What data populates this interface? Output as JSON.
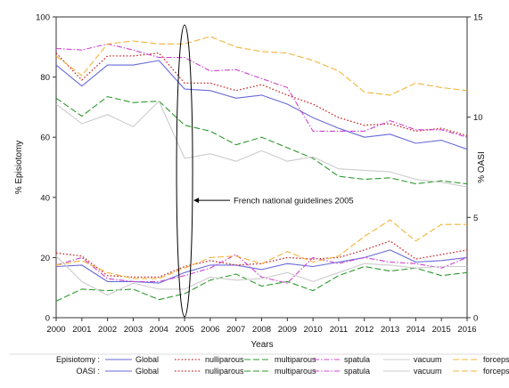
{
  "colors": {
    "global": "#6a6ad8",
    "nulliparous": "#cc2a2a",
    "multiparous": "#2e9a2e",
    "spatula": "#cc44cc",
    "vacuum": "#cccccc",
    "forceps": "#f0b43c",
    "axis": "#333333",
    "annotation": "#000000"
  },
  "chart_data": {
    "type": "line",
    "xlabel": "Years",
    "ylabel_left": "% Episiotomy",
    "ylabel_right": "% OASI",
    "x": [
      2000,
      2001,
      2002,
      2003,
      2004,
      2005,
      2006,
      2007,
      2008,
      2009,
      2010,
      2011,
      2012,
      2013,
      2014,
      2015,
      2016
    ],
    "x_ticks": [
      "2000",
      "2001",
      "2002",
      "2003",
      "2004",
      "2005",
      "2006",
      "2007",
      "2008",
      "2009",
      "2010",
      "2011",
      "2012",
      "2013",
      "2014",
      "2015",
      "2016"
    ],
    "ylim_left": [
      0,
      100
    ],
    "yticks_left": [
      "0",
      "20",
      "40",
      "60",
      "80",
      "100"
    ],
    "ylim_right": [
      0,
      15
    ],
    "yticks_right": [
      "0",
      "5",
      "10",
      "15"
    ],
    "grid": false,
    "legend_position": "bottom",
    "annotation": {
      "text": "French national guidelines 2005",
      "x": 2005,
      "y": 39
    },
    "series": [
      {
        "group": "Episiotomy",
        "name": "Global",
        "axis": "left",
        "style": "solid",
        "color_key": "global",
        "values": [
          84,
          77,
          84,
          84,
          85.5,
          76,
          75.5,
          73,
          74,
          71,
          66.5,
          63,
          60,
          61,
          58,
          59,
          56
        ]
      },
      {
        "group": "Episiotomy",
        "name": "nulliparous",
        "axis": "left",
        "style": "dot",
        "color_key": "nulliparous",
        "values": [
          88,
          79,
          87,
          87,
          88,
          78,
          78,
          75.5,
          77.5,
          74,
          71,
          66.5,
          64,
          64.5,
          62,
          63,
          60.5
        ]
      },
      {
        "group": "Episiotomy",
        "name": "multiparous",
        "axis": "left",
        "style": "longdash",
        "color_key": "multiparous",
        "values": [
          73,
          67,
          73.5,
          71.5,
          72,
          64,
          62,
          57.5,
          60,
          56.5,
          53,
          47,
          46,
          46.5,
          44.5,
          45.5,
          44.5
        ]
      },
      {
        "group": "Episiotomy",
        "name": "spatula",
        "axis": "left",
        "style": "dashdot",
        "color_key": "spatula",
        "values": [
          89.5,
          89,
          91,
          89,
          86.5,
          86.5,
          82,
          82.5,
          79.5,
          76.5,
          62,
          62,
          62,
          65.5,
          62.5,
          62.5,
          60
        ]
      },
      {
        "group": "Episiotomy",
        "name": "vacuum",
        "axis": "left",
        "style": "solid",
        "color_key": "vacuum",
        "values": [
          71,
          64.5,
          67.5,
          63.5,
          72,
          53,
          54.5,
          52,
          55.5,
          52,
          53.5,
          49.5,
          49,
          48.5,
          46,
          45,
          43.5
        ]
      },
      {
        "group": "Episiotomy",
        "name": "forceps",
        "axis": "left",
        "style": "longdash",
        "color_key": "forceps",
        "values": [
          87,
          80.5,
          91,
          92,
          91,
          91,
          93.5,
          90,
          88.5,
          88,
          85.5,
          82,
          75,
          74,
          78,
          76.5,
          75.5
        ]
      },
      {
        "group": "OASI",
        "name": "Global",
        "axis": "left",
        "style": "solid",
        "color_key": "global",
        "values": [
          17,
          17.5,
          12,
          12,
          11.5,
          15,
          17.5,
          17.5,
          16,
          18,
          17,
          18.5,
          20,
          22.5,
          18.5,
          19,
          20
        ]
      },
      {
        "group": "OASI",
        "name": "nulliparous",
        "axis": "left",
        "style": "dot",
        "color_key": "nulliparous",
        "values": [
          21.5,
          20.5,
          14,
          13.5,
          13.5,
          17,
          19,
          17.5,
          18,
          20,
          19.5,
          20,
          22.5,
          25.5,
          19.5,
          21,
          22.5
        ]
      },
      {
        "group": "OASI",
        "name": "multiparous",
        "axis": "left",
        "style": "longdash",
        "color_key": "multiparous",
        "values": [
          5.5,
          9.5,
          9,
          9.5,
          6,
          8,
          12.5,
          14.5,
          10.5,
          12,
          9,
          14,
          17,
          15.5,
          16.5,
          14,
          15
        ]
      },
      {
        "group": "OASI",
        "name": "spatula",
        "axis": "left",
        "style": "dashdot",
        "color_key": "spatula",
        "values": [
          17.5,
          20,
          13,
          12,
          12,
          14,
          16.5,
          21,
          13.5,
          11.5,
          20,
          18,
          20,
          18.5,
          18,
          16.5,
          20
        ]
      },
      {
        "group": "OASI",
        "name": "vacuum",
        "axis": "left",
        "style": "solid",
        "color_key": "vacuum",
        "values": [
          20.5,
          12,
          7.5,
          11.5,
          9.5,
          9.5,
          13.5,
          12.5,
          13,
          15,
          12,
          15,
          18,
          17.5,
          16.5,
          17,
          17
        ]
      },
      {
        "group": "OASI",
        "name": "forceps",
        "axis": "left",
        "style": "longdash",
        "color_key": "forceps",
        "values": [
          17.5,
          19,
          15,
          13,
          13,
          16.5,
          20,
          20.5,
          18,
          22,
          18.5,
          20.5,
          27,
          32.5,
          25.5,
          31,
          31
        ]
      }
    ]
  },
  "legend": {
    "rows": [
      {
        "prefix": "Episiotomy :",
        "entries": [
          {
            "label": "Global",
            "color_key": "global",
            "style": "solid"
          },
          {
            "label": "nulliparous",
            "color_key": "nulliparous",
            "style": "dot"
          },
          {
            "label": "multiparous",
            "color_key": "multiparous",
            "style": "longdash"
          },
          {
            "label": "spatula",
            "color_key": "spatula",
            "style": "dashdot"
          },
          {
            "label": "vacuum",
            "color_key": "vacuum",
            "style": "solid"
          },
          {
            "label": "forceps",
            "color_key": "forceps",
            "style": "longdash"
          }
        ]
      },
      {
        "prefix": "OASI :",
        "entries": [
          {
            "label": "Global",
            "color_key": "global",
            "style": "solid"
          },
          {
            "label": "nulliparous",
            "color_key": "nulliparous",
            "style": "dot"
          },
          {
            "label": "multiparous",
            "color_key": "multiparous",
            "style": "longdash"
          },
          {
            "label": "spatula",
            "color_key": "spatula",
            "style": "dashdot"
          },
          {
            "label": "vacuum",
            "color_key": "vacuum",
            "style": "solid"
          },
          {
            "label": "forceps",
            "color_key": "forceps",
            "style": "longdash"
          }
        ]
      }
    ]
  }
}
